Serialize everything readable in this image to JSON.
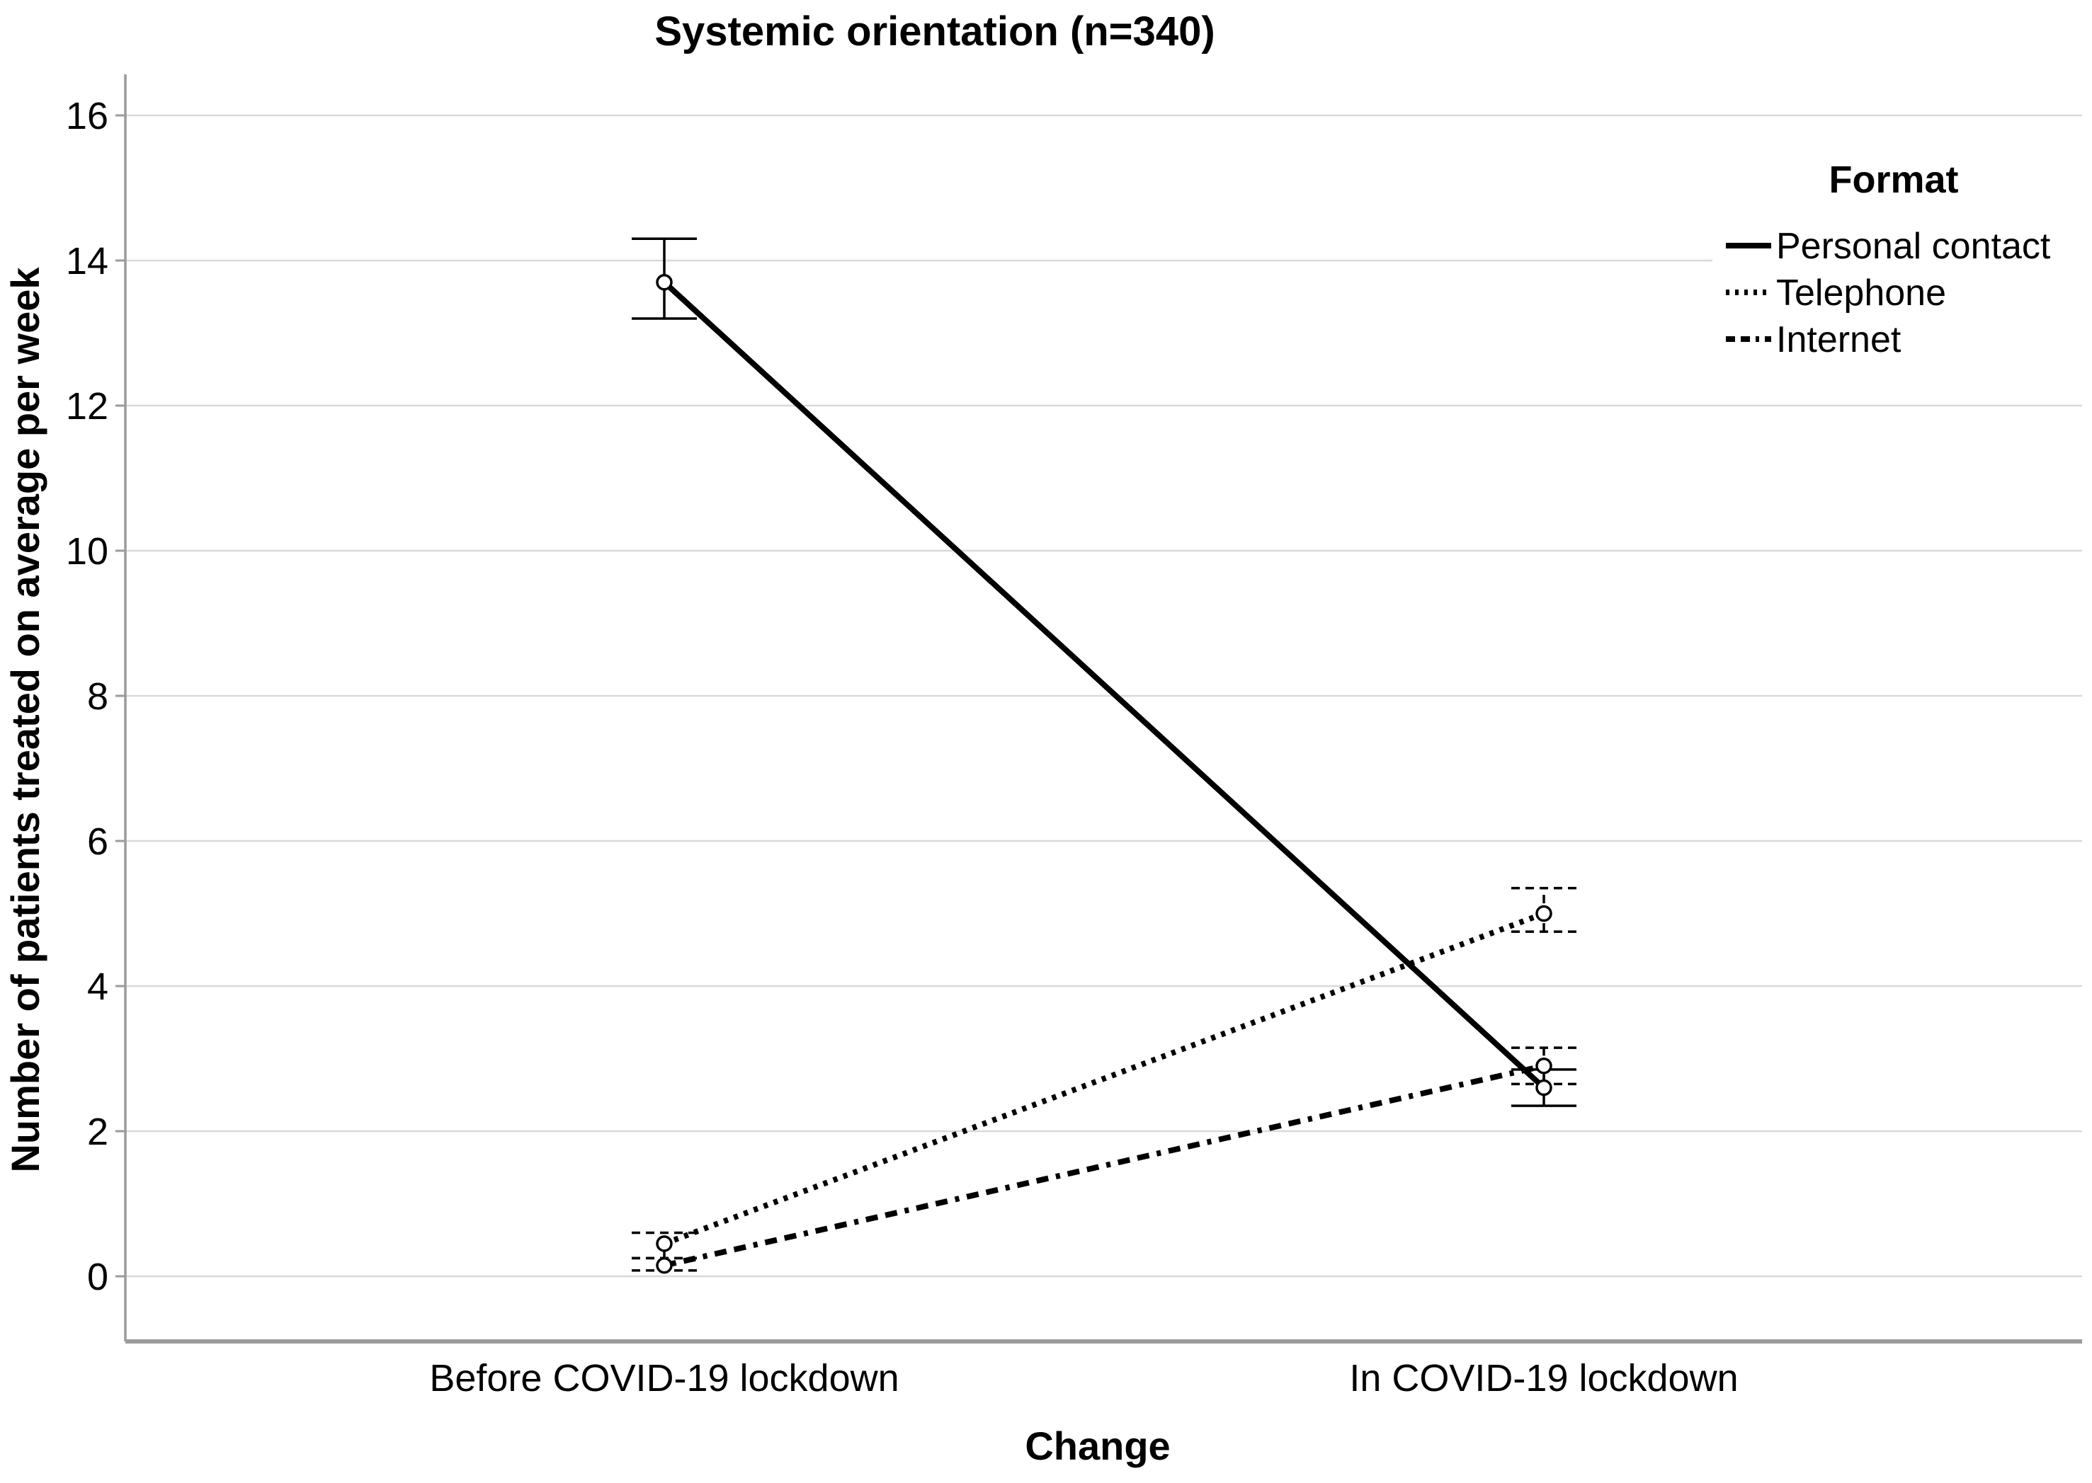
{
  "chart_data": {
    "type": "line",
    "title": "Systemic orientation (n=340)",
    "xlabel": "Change",
    "ylabel": "Number of patients treated on average per week",
    "legend_title": "Format",
    "legend_position": "top-right",
    "grid": "horizontal",
    "categories": [
      "Before COVID-19 lockdown",
      "In COVID-19 lockdown"
    ],
    "ylim": [
      0,
      16
    ],
    "yticks": [
      0,
      2,
      4,
      6,
      8,
      10,
      12,
      14,
      16
    ],
    "series": [
      {
        "name": "Personal contact",
        "line_style": "solid",
        "values": [
          13.7,
          2.6
        ],
        "error_low": [
          13.2,
          2.35
        ],
        "error_high": [
          14.3,
          2.85
        ]
      },
      {
        "name": "Telephone",
        "line_style": "dotted",
        "values": [
          0.45,
          5.0
        ],
        "error_low": [
          0.25,
          4.75
        ],
        "error_high": [
          0.6,
          5.35
        ]
      },
      {
        "name": "Internet",
        "line_style": "dash-dash-dot",
        "values": [
          0.15,
          2.9
        ],
        "error_low": [
          0.08,
          2.65
        ],
        "error_high": [
          0.25,
          3.15
        ]
      }
    ],
    "colors": {
      "series": "#000000",
      "gridline": "#d9d9d9",
      "axis_line": "#9b9b9b",
      "text": "#000000",
      "background": "#ffffff"
    }
  }
}
